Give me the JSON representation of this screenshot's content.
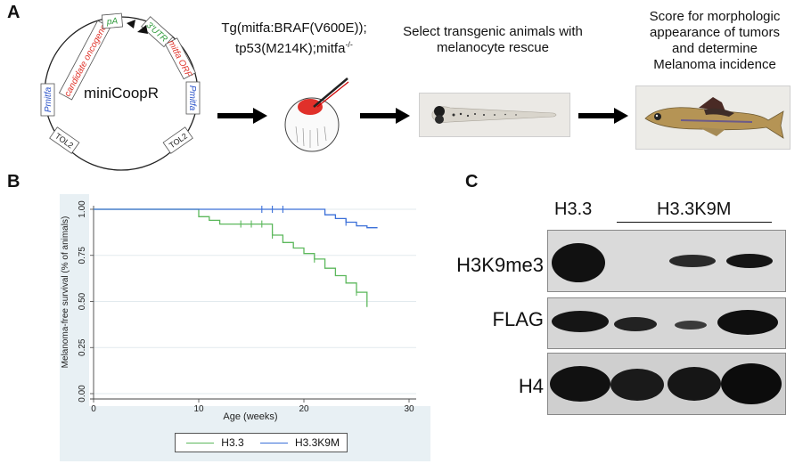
{
  "panelA": {
    "letter": "A",
    "plasmid": {
      "name": "miniCoopR",
      "labels": {
        "pA": "pA",
        "utr": "3'UTR",
        "mitfa_orf": "mitfa ORF",
        "pmitfa_right": "Pmitfa",
        "pmitfa_left": "Pmitfa",
        "candidate": "candidate oncogene",
        "tol2_left": "TOL2",
        "tol2_right": "TOL2"
      }
    },
    "step1": {
      "line1": "Tg(mitfa:BRAF(V600E));",
      "line2": "tp53(M214K);mitfa",
      "superscript": "-/-"
    },
    "step2": {
      "line1": "Select transgenic animals with",
      "line2": "melanocyte rescue"
    },
    "step3": {
      "line1": "Score for morphologic",
      "line2": "appearance of tumors",
      "line3": "and determine",
      "line4": "Melanoma incidence"
    }
  },
  "panelB": {
    "letter": "B",
    "colors": {
      "h33": "#5cb85c",
      "k9m": "#3a6fd8",
      "background": "#e8f0f4"
    }
  },
  "panelC": {
    "letter": "C",
    "col_h33": "H3.3",
    "col_k9m": "H3.3K9M",
    "rows": [
      "H3K9me3",
      "FLAG",
      "H4"
    ]
  },
  "chart_data": {
    "type": "line",
    "step": true,
    "title": "",
    "xlabel": "Age (weeks)",
    "ylabel": "Melanoma-free survival (% of animals)",
    "xlim": [
      0,
      30
    ],
    "ylim": [
      0,
      1
    ],
    "xticks": [
      0,
      10,
      20,
      30
    ],
    "yticks": [
      "0.00",
      "0.25",
      "0.50",
      "0.75",
      "1.00"
    ],
    "legend_position": "bottom",
    "series": [
      {
        "name": "H3.3",
        "color": "#5cb85c",
        "x": [
          0,
          10,
          10,
          11,
          11,
          12,
          12,
          17,
          17,
          18,
          18,
          19,
          19,
          20,
          20,
          21,
          21,
          22,
          22,
          23,
          23,
          24,
          24,
          25,
          25,
          26,
          26
        ],
        "y": [
          1.0,
          1.0,
          0.96,
          0.96,
          0.94,
          0.94,
          0.92,
          0.92,
          0.86,
          0.86,
          0.82,
          0.82,
          0.79,
          0.79,
          0.76,
          0.76,
          0.73,
          0.73,
          0.68,
          0.68,
          0.64,
          0.64,
          0.6,
          0.6,
          0.55,
          0.55,
          0.47
        ],
        "censored_x": [
          14,
          15,
          16,
          17,
          21,
          25
        ]
      },
      {
        "name": "H3.3K9M",
        "color": "#3a6fd8",
        "x": [
          0,
          22,
          22,
          23,
          23,
          24,
          24,
          25,
          25,
          26,
          26,
          27
        ],
        "y": [
          1.0,
          1.0,
          0.97,
          0.97,
          0.95,
          0.95,
          0.93,
          0.93,
          0.91,
          0.91,
          0.9,
          0.9
        ],
        "censored_x": [
          16,
          17,
          18,
          24
        ]
      }
    ]
  }
}
